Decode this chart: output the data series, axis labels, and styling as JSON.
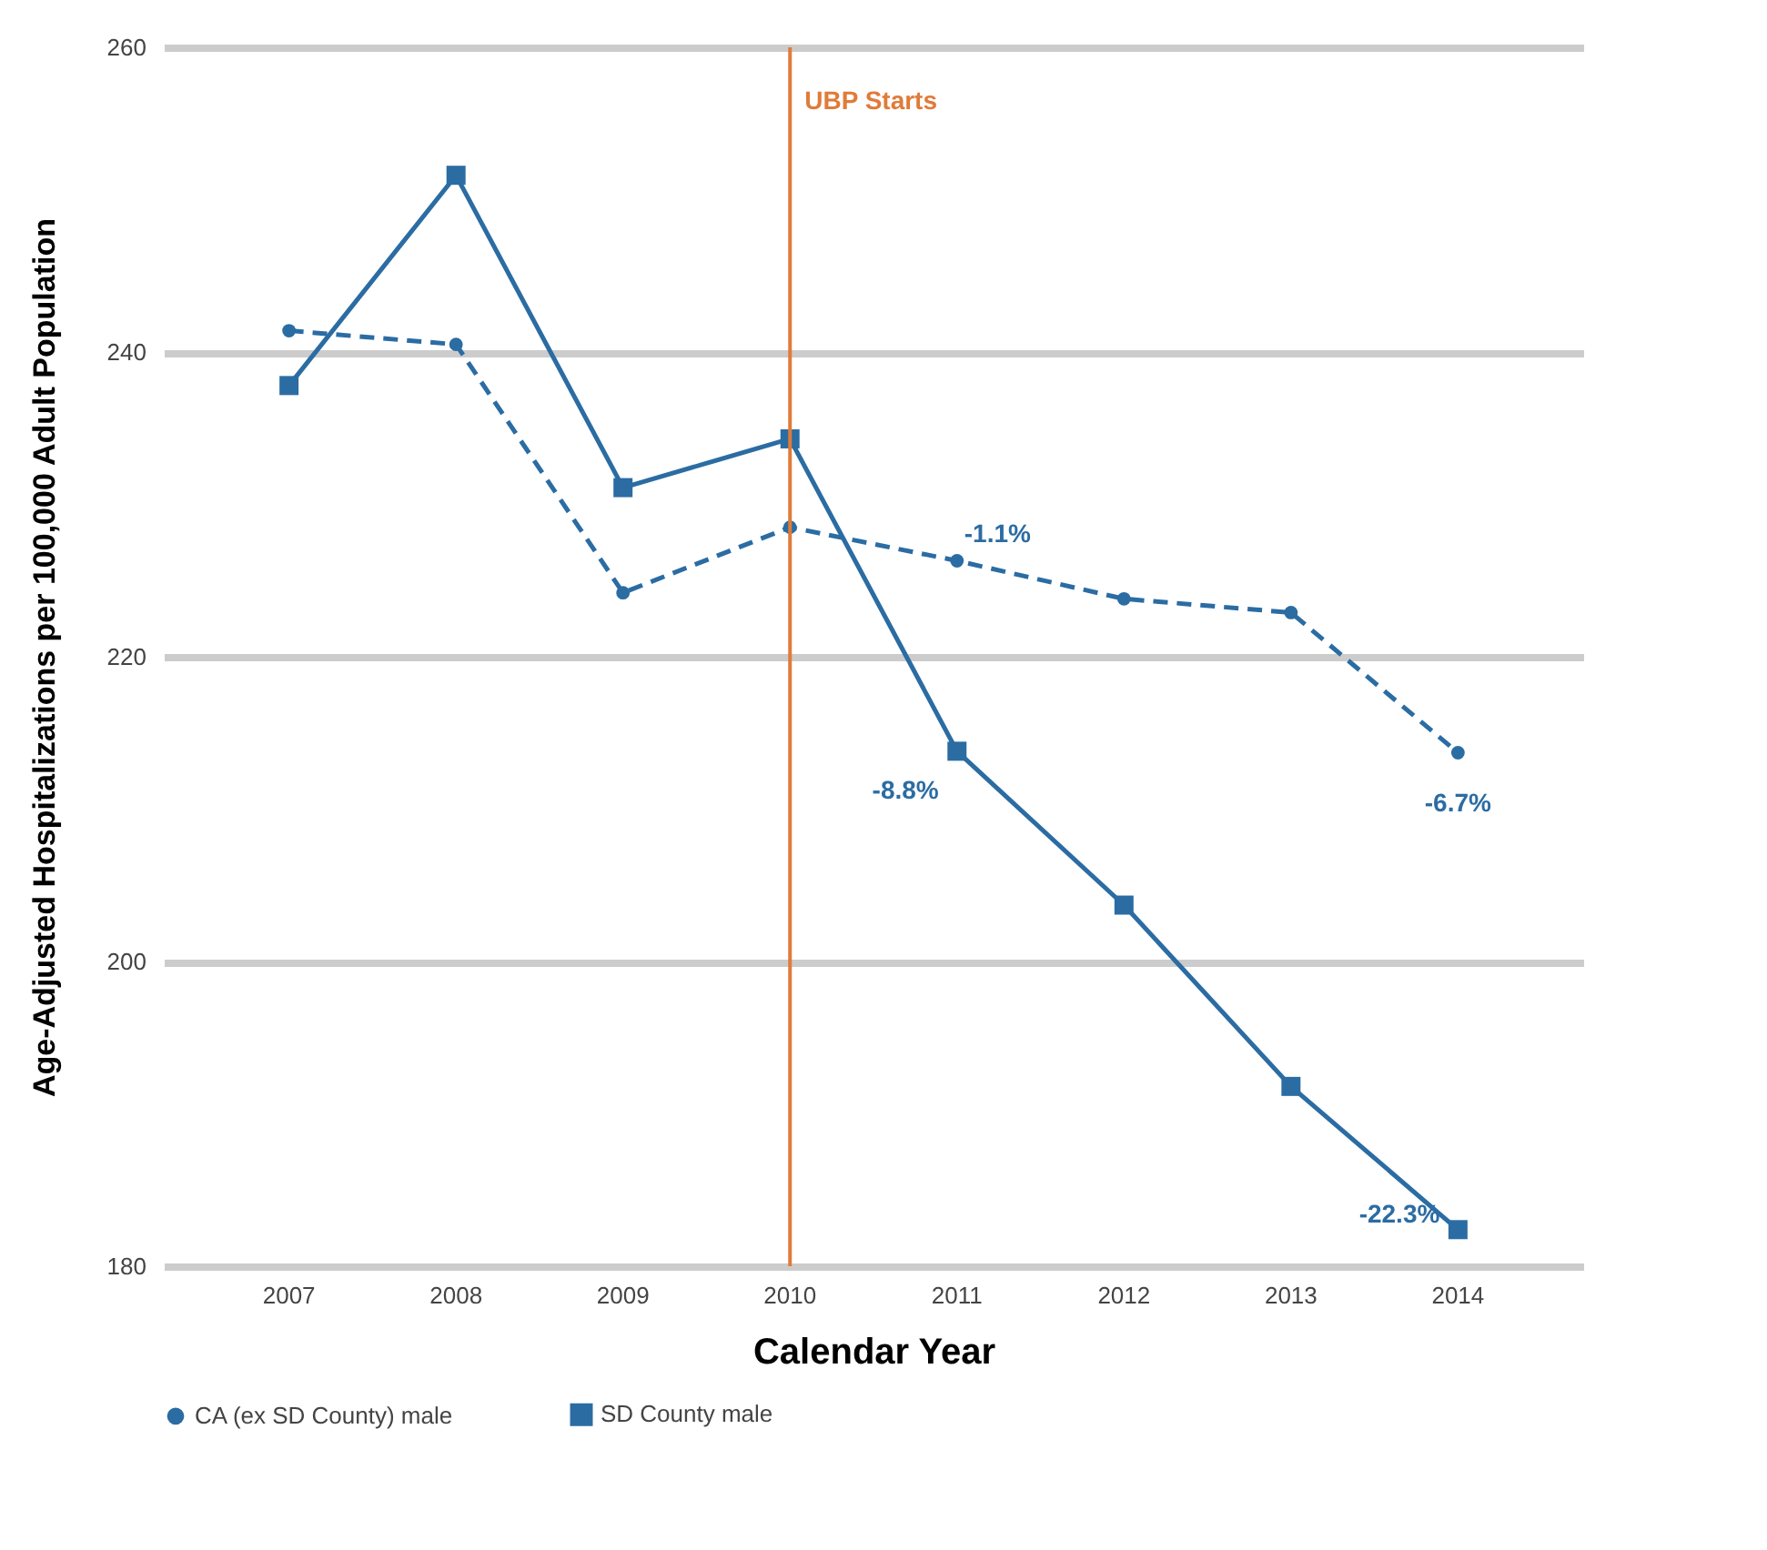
{
  "chart_data": {
    "type": "line",
    "xlabel": "Calendar Year",
    "ylabel": "Age-Adjusted Hospitalizations per 100,000 Adult Population",
    "categories": [
      "2007",
      "2008",
      "2009",
      "2010",
      "2011",
      "2012",
      "2013",
      "2014"
    ],
    "series": [
      {
        "name": "CA (ex SD County) male",
        "color": "#2b6ca3",
        "line_style": "dashed",
        "marker": "circle",
        "values": [
          241.4,
          240.5,
          224.2,
          228.5,
          226.3,
          223.8,
          222.9,
          213.7
        ]
      },
      {
        "name": "SD County male",
        "color": "#2b6ca3",
        "line_style": "solid",
        "marker": "square",
        "values": [
          237.8,
          251.6,
          231.1,
          234.3,
          213.8,
          203.7,
          191.8,
          182.4
        ]
      }
    ],
    "ylim": [
      180,
      260
    ],
    "yticks": [
      180,
      200,
      220,
      240,
      260
    ],
    "grid": "y",
    "legend": "bottom",
    "ref_lines": [
      {
        "axis": "x",
        "value": "2010",
        "label": "UBP Starts",
        "color": "#e07b39"
      }
    ],
    "annotations": [
      {
        "text": "-1.1%",
        "x": "2011",
        "y": 226.3
      },
      {
        "text": "-8.8%",
        "x": "2011",
        "y": 213.8
      },
      {
        "text": "-6.7%",
        "x": "2014",
        "y": 213.7
      },
      {
        "text": "-22.3%",
        "x": "2014",
        "y": 182.4
      }
    ]
  }
}
